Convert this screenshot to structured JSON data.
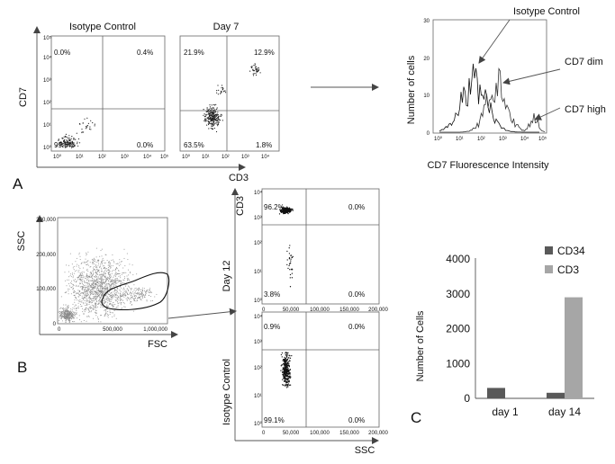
{
  "panel_labels": {
    "a": "A",
    "b": "B",
    "c": "C"
  },
  "panel_a": {
    "plots": [
      {
        "title": "Isotype Control",
        "quadrants": {
          "ul": "0.0%",
          "ur": "0.4%",
          "ll": "99.6%",
          "lr": "0.0%"
        }
      },
      {
        "title": "Day 7",
        "quadrants": {
          "ul": "21.9%",
          "ur": "12.9%",
          "ll": "63.5%",
          "lr": "1.8%"
        }
      }
    ],
    "ylabel": "CD7",
    "xlabel": "CD3",
    "log_ticks": [
      "10⁰",
      "10¹",
      "10²",
      "10³",
      "10⁴",
      "10⁵"
    ],
    "histogram": {
      "ylabel": "Number of cells",
      "xlabel": "CD7 Fluorescence Intensity",
      "y_ticks": [
        "0",
        "10",
        "20",
        "30"
      ],
      "x_ticks": [
        "10⁰",
        "10¹",
        "10²",
        "10³",
        "10⁴",
        "10⁵"
      ],
      "annotations": [
        "Isotype Control",
        "CD7 dim",
        "CD7 high"
      ]
    }
  },
  "panel_b": {
    "scatter": {
      "ylabel": "SSC",
      "xlabel": "FSC",
      "y_ticks": [
        "0",
        "100,000",
        "200,000",
        "300,000"
      ],
      "x_ticks": [
        "0",
        "500,000",
        "1,000,000"
      ]
    },
    "dot_plots": [
      {
        "row_label": "Day 12",
        "ylabel": "CD3",
        "quadrants": {
          "ul": "96.2%",
          "ur": "0.0%",
          "ll": "3.8%",
          "lr": "0.0%"
        }
      },
      {
        "row_label": "Isotype Control",
        "quadrants": {
          "ul": "0.9%",
          "ur": "0.0%",
          "ll": "99.1%",
          "lr": "0.0%"
        }
      }
    ],
    "xlabel": "SSC",
    "x_ticks": [
      "0",
      "50,000",
      "100,000",
      "150,000",
      "200,000"
    ],
    "log_ticks": [
      "10⁰",
      "10¹",
      "10²",
      "10³",
      "10⁴"
    ]
  },
  "chart_data": {
    "type": "bar",
    "categories": [
      "day 1",
      "day 14"
    ],
    "series": [
      {
        "name": "CD34",
        "color": "#595959",
        "values": [
          300,
          160
        ]
      },
      {
        "name": "CD3",
        "color": "#a6a6a6",
        "values": [
          0,
          2900
        ]
      }
    ],
    "ylabel": "Number of Cells",
    "ylim": [
      0,
      4000
    ],
    "y_ticks": [
      0,
      1000,
      2000,
      3000,
      4000
    ],
    "legend": "top-right"
  }
}
